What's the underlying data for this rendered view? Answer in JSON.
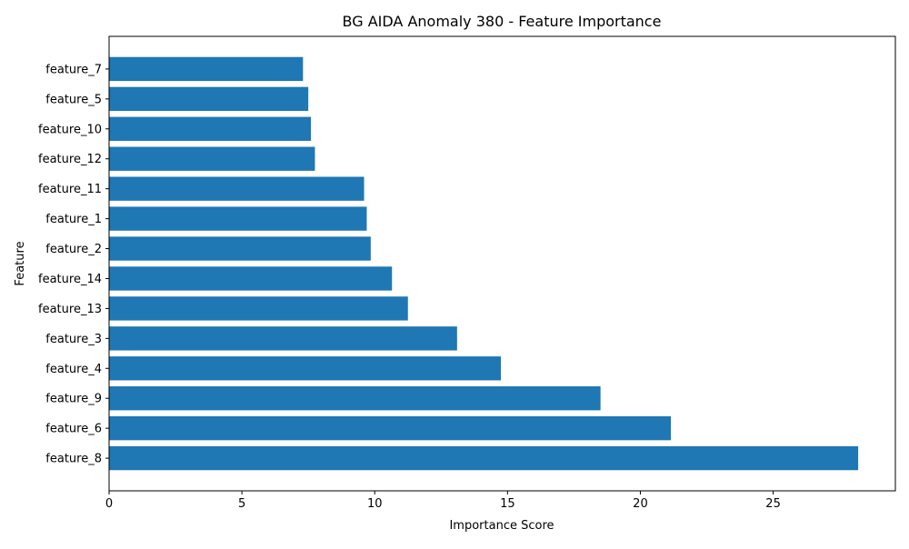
{
  "chart_data": {
    "type": "bar",
    "orientation": "horizontal",
    "title": "BG AIDA Anomaly 380 - Feature Importance",
    "xlabel": "Importance Score",
    "ylabel": "Feature",
    "categories": [
      "feature_8",
      "feature_6",
      "feature_9",
      "feature_4",
      "feature_3",
      "feature_13",
      "feature_14",
      "feature_2",
      "feature_1",
      "feature_11",
      "feature_12",
      "feature_10",
      "feature_5",
      "feature_7"
    ],
    "values": [
      28.2,
      21.15,
      18.5,
      14.75,
      13.1,
      11.25,
      10.65,
      9.85,
      9.7,
      9.6,
      7.75,
      7.6,
      7.5,
      7.3
    ],
    "xlim": [
      0,
      29.6
    ],
    "xticks": [
      0,
      5,
      10,
      15,
      20,
      25
    ],
    "grid": false,
    "bar_color": "#1f77b4"
  }
}
